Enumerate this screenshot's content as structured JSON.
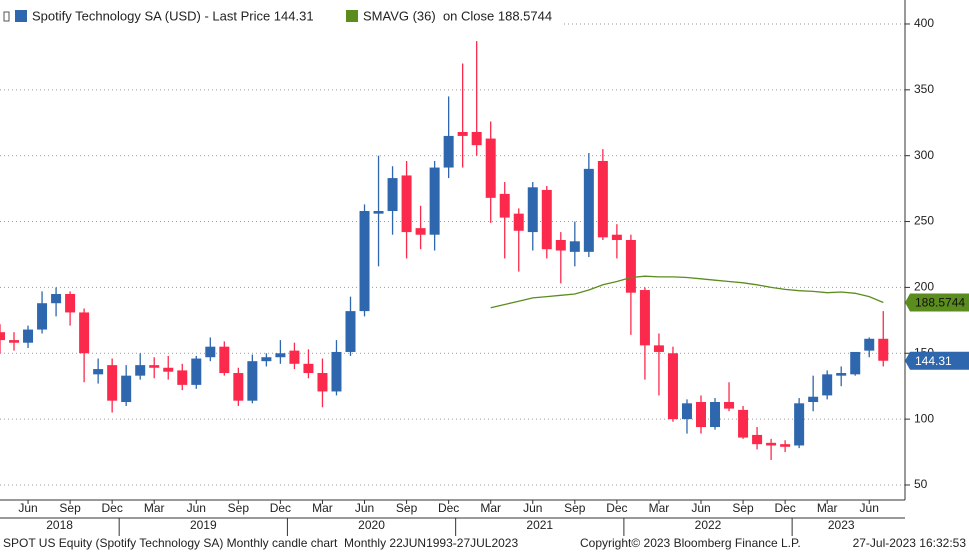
{
  "chart_data": {
    "type": "candlestick",
    "x": [
      "2018-04",
      "2018-05",
      "2018-06",
      "2018-07",
      "2018-08",
      "2018-09",
      "2018-10",
      "2018-11",
      "2018-12",
      "2019-01",
      "2019-02",
      "2019-03",
      "2019-04",
      "2019-05",
      "2019-06",
      "2019-07",
      "2019-08",
      "2019-09",
      "2019-10",
      "2019-11",
      "2019-12",
      "2020-01",
      "2020-02",
      "2020-03",
      "2020-04",
      "2020-05",
      "2020-06",
      "2020-07",
      "2020-08",
      "2020-09",
      "2020-10",
      "2020-11",
      "2020-12",
      "2021-01",
      "2021-02",
      "2021-03",
      "2021-04",
      "2021-05",
      "2021-06",
      "2021-07",
      "2021-08",
      "2021-09",
      "2021-10",
      "2021-11",
      "2021-12",
      "2022-01",
      "2022-02",
      "2022-03",
      "2022-04",
      "2022-05",
      "2022-06",
      "2022-07",
      "2022-08",
      "2022-09",
      "2022-10",
      "2022-11",
      "2022-12",
      "2023-01",
      "2023-02",
      "2023-03",
      "2023-04",
      "2023-05",
      "2023-06",
      "2023-07"
    ],
    "series": [
      {
        "name": "Spotify Technology SA (USD) - Last Price 144.31",
        "up_color": "#2e67ad",
        "down_color": "#fb2a4d",
        "open": [
          166,
          160,
          158,
          168,
          188,
          195,
          181,
          134,
          141,
          113,
          133,
          141,
          139,
          137,
          126,
          147,
          155,
          135,
          114,
          144,
          147,
          152,
          142,
          135,
          121,
          151,
          182,
          256,
          258,
          285,
          245,
          240,
          291,
          318,
          318,
          313,
          271,
          256,
          242,
          274,
          236,
          227,
          227,
          296,
          240,
          236,
          198,
          156,
          150,
          100,
          113,
          94,
          113,
          107,
          88,
          82,
          81,
          80,
          113,
          118,
          133,
          134,
          152,
          161
        ],
        "high": [
          172,
          166,
          171,
          197,
          200,
          197,
          184,
          146,
          146,
          141,
          150,
          147,
          148,
          142,
          148,
          162,
          159,
          139,
          149,
          150,
          160,
          158,
          153,
          146,
          160,
          193,
          263,
          300,
          292,
          296,
          262,
          296,
          345,
          370,
          387,
          326,
          280,
          260,
          280,
          277,
          242,
          250,
          302,
          305,
          248,
          240,
          200,
          165,
          155,
          115,
          118,
          116,
          128,
          110,
          94,
          85,
          84,
          116,
          133,
          137,
          140,
          150,
          162,
          182
        ],
        "low": [
          150,
          152,
          154,
          165,
          178,
          171,
          128,
          127,
          105,
          110,
          130,
          131,
          130,
          122,
          123,
          144,
          133,
          110,
          112,
          140,
          142,
          138,
          131,
          109,
          118,
          148,
          178,
          216,
          240,
          222,
          229,
          228,
          283,
          291,
          300,
          249,
          222,
          212,
          228,
          222,
          203,
          216,
          223,
          236,
          222,
          164,
          130,
          118,
          98,
          89,
          89,
          92,
          106,
          85,
          77,
          69,
          75,
          78,
          106,
          115,
          125,
          133,
          147,
          140
        ],
        "close": [
          160,
          158,
          168,
          188,
          195,
          181,
          150,
          138,
          114,
          133,
          141,
          139,
          136,
          126,
          146,
          155,
          135,
          114,
          144,
          147,
          150,
          142,
          135,
          121,
          151,
          182,
          258,
          258,
          283,
          242,
          240,
          291,
          315,
          315,
          308,
          268,
          253,
          243,
          276,
          229,
          228,
          235,
          290,
          238,
          236,
          196,
          156,
          151,
          100,
          112,
          94,
          113,
          108,
          86,
          81,
          80,
          79,
          112,
          117,
          134,
          135,
          151,
          161,
          144.31
        ],
        "end_label": "144.31"
      },
      {
        "name": "SMAVG (36)  on Close 188.5744",
        "color": "#5b8c1e",
        "values": [
          null,
          null,
          null,
          null,
          null,
          null,
          null,
          null,
          null,
          null,
          null,
          null,
          null,
          null,
          null,
          null,
          null,
          null,
          null,
          null,
          null,
          null,
          null,
          null,
          null,
          null,
          null,
          null,
          null,
          null,
          null,
          null,
          null,
          null,
          null,
          184.5,
          187,
          189.5,
          192,
          193,
          194,
          195,
          198,
          202,
          204.5,
          207.5,
          208.5,
          208,
          208,
          207.5,
          206.5,
          205.5,
          204.5,
          203.5,
          202,
          200,
          198.5,
          197.5,
          197,
          196,
          196.5,
          195.5,
          193,
          188.5744
        ],
        "end_label": "188.5744"
      }
    ],
    "ylim": [
      38.6,
      418.2
    ],
    "yticks": [
      50,
      100,
      150,
      200,
      250,
      300,
      350,
      400
    ],
    "grid": true,
    "xticks": [
      {
        "value": "2018-06",
        "label": "Jun"
      },
      {
        "value": "2018-09",
        "label": "Sep"
      },
      {
        "value": "2018-12",
        "label": "Dec"
      },
      {
        "value": "2019-03",
        "label": "Mar"
      },
      {
        "value": "2019-06",
        "label": "Jun"
      },
      {
        "value": "2019-09",
        "label": "Sep"
      },
      {
        "value": "2019-12",
        "label": "Dec"
      },
      {
        "value": "2020-03",
        "label": "Mar"
      },
      {
        "value": "2020-06",
        "label": "Jun"
      },
      {
        "value": "2020-09",
        "label": "Sep"
      },
      {
        "value": "2020-12",
        "label": "Dec"
      },
      {
        "value": "2021-03",
        "label": "Mar"
      },
      {
        "value": "2021-06",
        "label": "Jun"
      },
      {
        "value": "2021-09",
        "label": "Sep"
      },
      {
        "value": "2021-12",
        "label": "Dec"
      },
      {
        "value": "2022-03",
        "label": "Mar"
      },
      {
        "value": "2022-06",
        "label": "Jun"
      },
      {
        "value": "2022-09",
        "label": "Sep"
      },
      {
        "value": "2022-12",
        "label": "Dec"
      },
      {
        "value": "2023-03",
        "label": "Mar"
      },
      {
        "value": "2023-06",
        "label": "Jun"
      }
    ],
    "year_labels": [
      "2018",
      "2019",
      "2020",
      "2021",
      "2022",
      "2023"
    ],
    "footer": {
      "description": "SPOT US Equity (Spotify Technology SA) Monthly candle chart  Monthly 22JUN1993-27JUL2023",
      "copyright": "Copyright© 2023 Bloomberg Finance L.P.",
      "timestamp": "27-Jul-2023 16:32:53"
    }
  }
}
